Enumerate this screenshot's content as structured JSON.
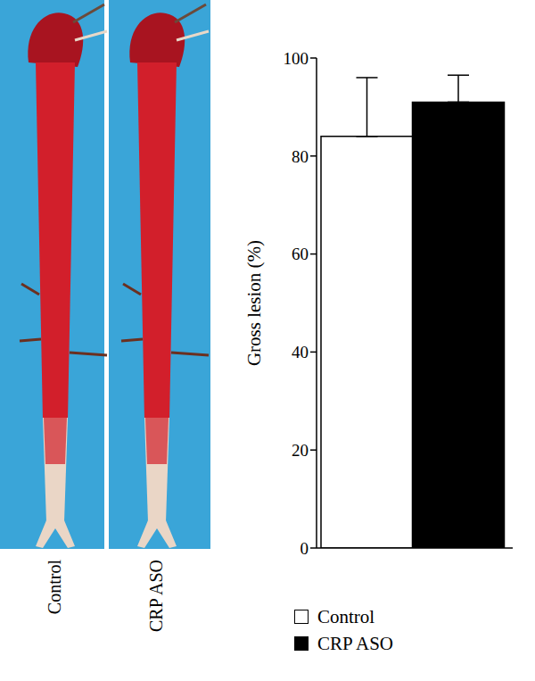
{
  "images": {
    "labels": [
      "Control",
      "CRP ASO"
    ]
  },
  "chart_data": {
    "type": "bar",
    "categories": [
      "Control",
      "CRP ASO"
    ],
    "values": [
      84,
      91
    ],
    "errors": [
      12,
      5.5
    ],
    "colors": [
      "#ffffff",
      "#000000"
    ],
    "ylabel": "Gross lesion (%)",
    "ylim": [
      0,
      100
    ],
    "yticks": [
      0,
      20,
      40,
      60,
      80,
      100
    ],
    "legend": "bottom",
    "tick_labels": "y"
  }
}
